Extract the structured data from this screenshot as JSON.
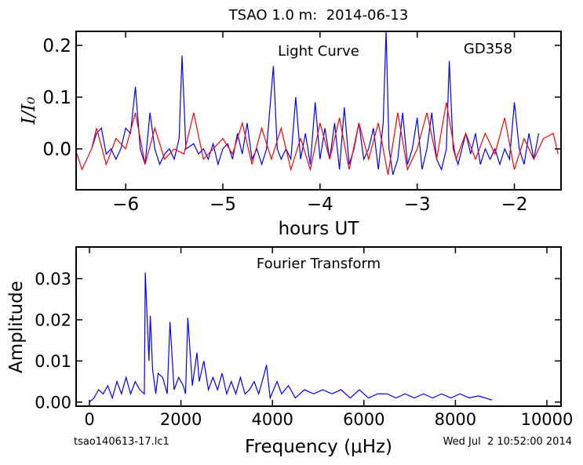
{
  "chart_data": [
    {
      "type": "line",
      "title": "TSAO 1.0 m:  2014-06-13",
      "x_label": "hours UT",
      "y_label": "I/I₀",
      "annotations": [
        "Light Curve",
        "GD358"
      ],
      "xlim": [
        -6.51,
        -1.52
      ],
      "ylim": [
        -0.079,
        0.227
      ],
      "xticks": [
        {
          "value": -6,
          "label": "−6"
        },
        {
          "value": -5,
          "label": "−5"
        },
        {
          "value": -4,
          "label": "−4"
        },
        {
          "value": -3,
          "label": "−3"
        },
        {
          "value": -2,
          "label": "−2"
        }
      ],
      "yticks": [
        {
          "value": 0,
          "label": "0.0"
        },
        0.1,
        0.2
      ],
      "series": [
        {
          "color": "#0000ff",
          "x": [
            -6.35,
            -6.3,
            -6.25,
            -6.2,
            -6.15,
            -6.1,
            -6.05,
            -6.0,
            -5.95,
            -5.9,
            -5.85,
            -5.8,
            -5.75,
            -5.7,
            -5.65,
            -5.6,
            -5.55,
            -5.5,
            -5.45,
            -5.42,
            -5.38,
            -5.3,
            -5.25,
            -5.2,
            -5.15,
            -5.1,
            -5.05,
            -5.0,
            -4.95,
            -4.9,
            -4.85,
            -4.8,
            -4.75,
            -4.7,
            -4.65,
            -4.6,
            -4.55,
            -4.48,
            -4.44,
            -4.4,
            -4.35,
            -4.3,
            -4.25,
            -4.2,
            -4.15,
            -4.1,
            -4.05,
            -4.0,
            -3.95,
            -3.9,
            -3.85,
            -3.8,
            -3.75,
            -3.7,
            -3.65,
            -3.6,
            -3.55,
            -3.5,
            -3.45,
            -3.4,
            -3.35,
            -3.32,
            -3.29,
            -3.25,
            -3.2,
            -3.15,
            -3.1,
            -3.05,
            -3.0,
            -2.95,
            -2.9,
            -2.85,
            -2.8,
            -2.75,
            -2.7,
            -2.67,
            -2.63,
            -2.58,
            -2.5,
            -2.45,
            -2.4,
            -2.35,
            -2.3,
            -2.25,
            -2.2,
            -2.15,
            -2.1,
            -2.05,
            -2.0,
            -1.95,
            -1.9,
            -1.85,
            -1.8,
            -1.75
          ],
          "values": [
            0.0,
            0.03,
            0.04,
            -0.01,
            0.0,
            -0.02,
            0.0,
            0.04,
            0.03,
            0.12,
            0.0,
            -0.03,
            0.07,
            0.0,
            -0.03,
            -0.01,
            0.0,
            -0.02,
            0.02,
            0.18,
            0.0,
            0.01,
            -0.01,
            0.0,
            -0.02,
            0.01,
            -0.03,
            0.0,
            0.01,
            -0.02,
            0.03,
            -0.01,
            0.05,
            -0.02,
            0.0,
            -0.03,
            0.0,
            0.16,
            0.0,
            -0.02,
            0.0,
            -0.02,
            0.1,
            -0.02,
            0.03,
            -0.03,
            0.09,
            -0.02,
            0.04,
            -0.02,
            0.05,
            -0.04,
            0.08,
            -0.03,
            0.0,
            0.05,
            -0.02,
            0.0,
            0.04,
            -0.04,
            0.05,
            0.23,
            0.0,
            -0.05,
            -0.02,
            0.07,
            -0.03,
            0.0,
            0.06,
            -0.04,
            0.0,
            0.07,
            -0.02,
            -0.04,
            0.0,
            0.17,
            0.0,
            -0.03,
            0.03,
            -0.01,
            0.03,
            -0.03,
            0.0,
            -0.02,
            0.0,
            -0.03,
            0.0,
            -0.02,
            0.09,
            0.0,
            -0.03,
            0.03,
            -0.02,
            0.03
          ]
        },
        {
          "color": "#ff0000",
          "x": [
            -6.5,
            -6.45,
            -6.35,
            -6.3,
            -6.2,
            -6.1,
            -6.0,
            -5.9,
            -5.8,
            -5.7,
            -5.6,
            -5.5,
            -5.4,
            -5.3,
            -5.2,
            -5.1,
            -5.0,
            -4.9,
            -4.8,
            -4.7,
            -4.6,
            -4.5,
            -4.4,
            -4.3,
            -4.2,
            -4.1,
            -4.0,
            -3.9,
            -3.8,
            -3.7,
            -3.6,
            -3.5,
            -3.4,
            -3.3,
            -3.2,
            -3.1,
            -3.0,
            -2.9,
            -2.8,
            -2.7,
            -2.6,
            -2.5,
            -2.4,
            -2.3,
            -2.2,
            -2.1,
            -2.0,
            -1.9,
            -1.8,
            -1.7,
            -1.6,
            -1.55
          ],
          "values": [
            -0.01,
            -0.04,
            0.0,
            0.04,
            -0.03,
            0.02,
            0.0,
            0.07,
            -0.03,
            0.04,
            -0.02,
            0.0,
            -0.01,
            0.07,
            -0.02,
            0.0,
            0.02,
            -0.01,
            0.05,
            -0.03,
            0.04,
            -0.02,
            0.04,
            -0.04,
            0.02,
            -0.04,
            0.05,
            -0.02,
            0.06,
            -0.04,
            0.05,
            -0.02,
            0.05,
            -0.05,
            0.07,
            -0.04,
            0.0,
            0.07,
            -0.02,
            0.09,
            -0.02,
            0.03,
            -0.02,
            0.03,
            -0.01,
            0.06,
            -0.04,
            0.02,
            -0.02,
            0.02,
            0.03,
            -0.01
          ]
        }
      ]
    },
    {
      "type": "line",
      "x_label": "Frequency (μHz)",
      "y_label": "Amplitude",
      "annotations": [
        "Fourier Transform"
      ],
      "xlim": [
        -292,
        10309
      ],
      "ylim": [
        -0.001,
        0.0377
      ],
      "xticks": [
        0,
        2000,
        4000,
        6000,
        8000,
        10000
      ],
      "yticks": [
        {
          "value": 0,
          "label": "0.00"
        },
        0.01,
        0.02,
        0.03
      ],
      "series": [
        {
          "color": "#0000ff",
          "x": [
            0,
            100,
            200,
            300,
            400,
            500,
            600,
            700,
            800,
            900,
            1000,
            1100,
            1200,
            1220,
            1300,
            1330,
            1380,
            1450,
            1500,
            1600,
            1700,
            1760,
            1850,
            1950,
            2050,
            2100,
            2150,
            2250,
            2350,
            2400,
            2500,
            2600,
            2700,
            2800,
            2900,
            3000,
            3100,
            3200,
            3300,
            3400,
            3500,
            3600,
            3700,
            3800,
            3870,
            3950,
            4100,
            4200,
            4350,
            4500,
            4700,
            4900,
            5100,
            5300,
            5500,
            5700,
            5900,
            6100,
            6300,
            6500,
            6700,
            6900,
            7100,
            7300,
            7500,
            7700,
            7900,
            8100,
            8300,
            8500,
            8800
          ],
          "values": [
            0,
            0.001,
            0.003,
            0.002,
            0.004,
            0.001,
            0.005,
            0.002,
            0.006,
            0.002,
            0.005,
            0.003,
            0.002,
            0.0315,
            0.01,
            0.021,
            0.008,
            0.002,
            0.007,
            0.006,
            0.002,
            0.0195,
            0.003,
            0.006,
            0.004,
            0.002,
            0.0205,
            0.004,
            0.012,
            0.005,
            0.01,
            0.003,
            0.006,
            0.003,
            0.007,
            0.002,
            0.005,
            0.002,
            0.006,
            0.002,
            0.003,
            0.005,
            0.002,
            0.006,
            0.009,
            0.001,
            0.005,
            0.002,
            0.004,
            0.001,
            0.003,
            0.002,
            0.003,
            0.002,
            0.003,
            0.001,
            0.003,
            0.001,
            0.002,
            0.002,
            0.001,
            0.002,
            0.001,
            0.002,
            0.001,
            0.002,
            0.001,
            0.002,
            0.001,
            0.0015,
            0.0005
          ]
        }
      ]
    }
  ],
  "footer": {
    "left": "tsao140613-17.lc1",
    "right": "Wed Jul  2 10:52:00 2014"
  }
}
